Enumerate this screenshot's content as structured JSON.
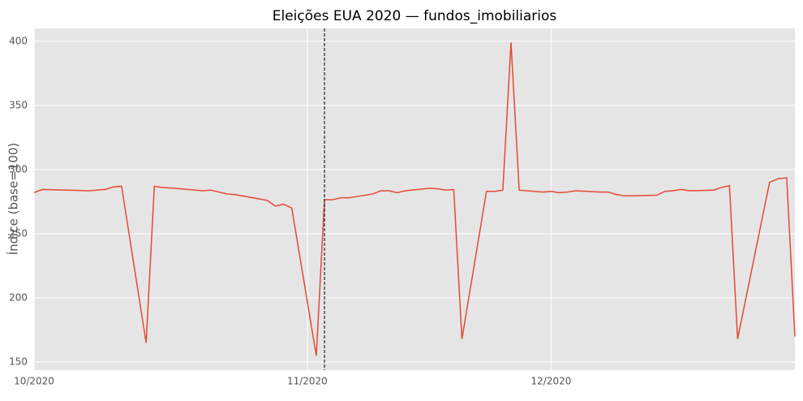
{
  "chart_data": {
    "type": "line",
    "title": "Eleições EUA 2020 — fundos_imobiliarios",
    "y_label": "Índice (base=100)",
    "x": [
      0,
      1,
      6.7,
      8.7,
      9.7,
      10.7,
      13.7,
      14.7,
      15.7,
      17.1,
      20.6,
      21.6,
      22.6,
      23.6,
      24.6,
      28.5,
      29.5,
      30.5,
      31.5,
      34.5,
      35.5,
      36.5,
      37.5,
      38.5,
      41.4,
      42.4,
      43.4,
      44.4,
      45.4,
      48.4,
      49.4,
      50.4,
      51.3,
      52.3,
      55.3,
      56.3,
      57.3,
      58.3,
      59.3,
      62.2,
      63.2,
      64.2,
      65.2,
      66.2,
      69.2,
      70.2,
      71.2,
      72.2,
      73.1,
      76.1,
      77.1,
      78.1,
      79.1,
      80.1,
      83.1,
      84,
      85,
      86,
      89.9,
      91,
      92,
      93
    ],
    "series": [
      {
        "name": "fundos_imobiliarios",
        "color": "#e24a33",
        "values": [
          282,
          284.5,
          283.5,
          284.5,
          286.5,
          287,
          165,
          287,
          286,
          285.5,
          283.5,
          284,
          282.5,
          281,
          280.5,
          276,
          271.5,
          273,
          270,
          155,
          276.5,
          276.5,
          278,
          278,
          281,
          283.5,
          283.5,
          282,
          283.5,
          285.5,
          285,
          284,
          284.5,
          168,
          283,
          283,
          284,
          399,
          284,
          282.5,
          283,
          282,
          282.5,
          283.5,
          282.5,
          282.5,
          280.5,
          279.5,
          279.5,
          280,
          283,
          283.5,
          284.5,
          283.5,
          284,
          286,
          287.5,
          168,
          290,
          293,
          293.5,
          170
        ]
      }
    ],
    "xlim": [
      0,
      93
    ],
    "xticks": [
      {
        "value": 0,
        "label": "10/2020"
      },
      {
        "value": 33.4,
        "label": "11/2020"
      },
      {
        "value": 63.2,
        "label": "12/2020"
      }
    ],
    "ylim": [
      143.7,
      410
    ],
    "yticks": [
      150,
      200,
      250,
      300,
      350,
      400
    ],
    "event_x": 35.5,
    "grid": true
  }
}
